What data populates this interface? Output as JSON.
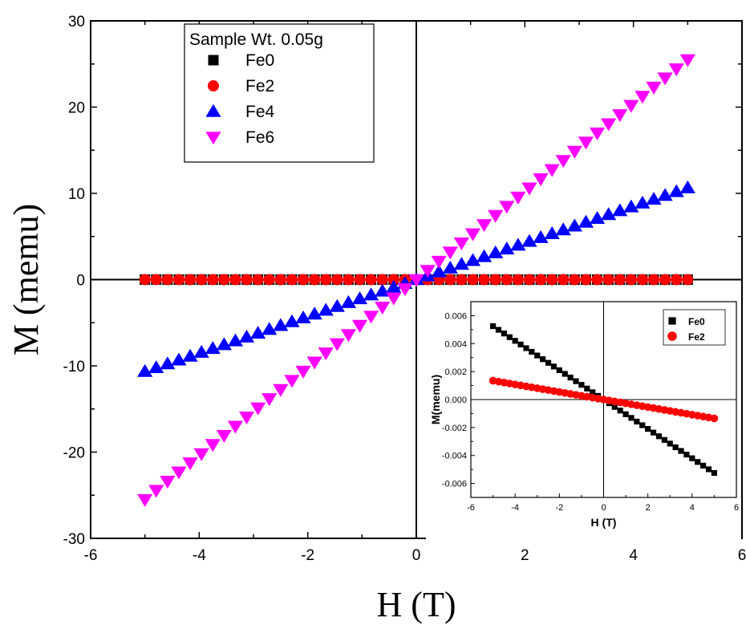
{
  "chart_data": [
    {
      "type": "scatter",
      "xlabel": "H (T)",
      "ylabel": "M (memu)",
      "xlim": [
        -6,
        6
      ],
      "ylim": [
        -30,
        30
      ],
      "xticks": [
        -6,
        -4,
        -2,
        0,
        2,
        4,
        6
      ],
      "yticks": [
        -30,
        -20,
        -10,
        0,
        10,
        20,
        30
      ],
      "grid": false,
      "legend_title": "Sample Wt. 0.05g",
      "legend_position": "top-left",
      "series": [
        {
          "name": "Fe0",
          "color": "#000000",
          "marker": "square",
          "x_range": [
            -5,
            5
          ],
          "points": 49,
          "slope": -0.00105
        },
        {
          "name": "Fe2",
          "color": "#ff0000",
          "marker": "circle",
          "x_range": [
            -5,
            5
          ],
          "points": 49,
          "slope": -0.00027
        },
        {
          "name": "Fe4",
          "color": "#0000ff",
          "marker": "triangle-up",
          "x_range": [
            -5,
            5
          ],
          "points": 49,
          "slope": 2.13
        },
        {
          "name": "Fe6",
          "color": "#ff00ff",
          "marker": "triangle-down",
          "x_range": [
            -5,
            5
          ],
          "points": 49,
          "slope": 5.1
        }
      ]
    },
    {
      "type": "scatter",
      "xlabel": "H (T)",
      "ylabel": "M(memu)",
      "xlim": [
        -6,
        6
      ],
      "ylim": [
        -0.007,
        0.007
      ],
      "xticks": [
        -6,
        -4,
        -2,
        0,
        2,
        4,
        6
      ],
      "xtick_labels": [
        "-6",
        "-4",
        "-2",
        "0",
        "2",
        "4",
        "6"
      ],
      "yticks": [
        -0.006,
        -0.004,
        -0.002,
        0.0,
        0.002,
        0.004,
        0.006
      ],
      "ytick_labels": [
        "-0.006",
        "-0.004",
        "-0.002",
        "0.000",
        "0.002",
        "0.004",
        "0.006"
      ],
      "grid": false,
      "legend_position": "top-right",
      "series": [
        {
          "name": "Fe0",
          "color": "#000000",
          "marker": "square",
          "x_range": [
            -5,
            5
          ],
          "points": 41,
          "slope": -0.00105
        },
        {
          "name": "Fe2",
          "color": "#ff0000",
          "marker": "circle",
          "x_range": [
            -5,
            5
          ],
          "points": 41,
          "slope": -0.00027
        }
      ]
    }
  ]
}
